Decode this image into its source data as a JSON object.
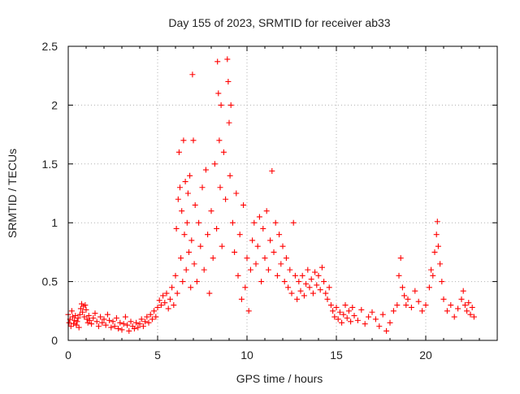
{
  "chart_data": {
    "type": "scatter",
    "title": "Day 155 of 2023, SRMTID for receiver ab33",
    "xlabel": "GPS time / hours",
    "ylabel": "SRMTID / TECUs",
    "xlim": [
      0,
      24
    ],
    "ylim": [
      0,
      2.5
    ],
    "xticks": [
      0,
      5,
      10,
      15,
      20
    ],
    "xtick_labels": [
      "0",
      "5",
      "10",
      "15",
      "20"
    ],
    "yticks": [
      0,
      0.5,
      1,
      1.5,
      2,
      2.5
    ],
    "ytick_labels": [
      "0",
      "0.5",
      "1",
      "1.5",
      "2",
      "2.5"
    ],
    "grid": true,
    "marker": "+",
    "series": [
      {
        "name": "SRMTID",
        "color": "#ff0000",
        "points": [
          [
            0.0,
            0.22
          ],
          [
            0.05,
            0.15
          ],
          [
            0.1,
            0.18
          ],
          [
            0.15,
            0.12
          ],
          [
            0.2,
            0.25
          ],
          [
            0.25,
            0.2
          ],
          [
            0.3,
            0.14
          ],
          [
            0.35,
            0.17
          ],
          [
            0.4,
            0.21
          ],
          [
            0.45,
            0.13
          ],
          [
            0.5,
            0.16
          ],
          [
            0.55,
            0.19
          ],
          [
            0.6,
            0.11
          ],
          [
            0.65,
            0.22
          ],
          [
            0.7,
            0.27
          ],
          [
            0.75,
            0.31
          ],
          [
            0.8,
            0.24
          ],
          [
            0.85,
            0.29
          ],
          [
            0.9,
            0.2
          ],
          [
            0.95,
            0.3
          ],
          [
            1.0,
            0.26
          ],
          [
            1.05,
            0.18
          ],
          [
            1.1,
            0.15
          ],
          [
            1.15,
            0.21
          ],
          [
            1.2,
            0.17
          ],
          [
            1.3,
            0.14
          ],
          [
            1.4,
            0.19
          ],
          [
            1.5,
            0.23
          ],
          [
            1.6,
            0.16
          ],
          [
            1.7,
            0.12
          ],
          [
            1.8,
            0.2
          ],
          [
            1.9,
            0.15
          ],
          [
            2.0,
            0.18
          ],
          [
            2.1,
            0.13
          ],
          [
            2.2,
            0.22
          ],
          [
            2.3,
            0.17
          ],
          [
            2.4,
            0.11
          ],
          [
            2.5,
            0.16
          ],
          [
            2.6,
            0.12
          ],
          [
            2.7,
            0.19
          ],
          [
            2.8,
            0.1
          ],
          [
            2.9,
            0.15
          ],
          [
            3.0,
            0.09
          ],
          [
            3.1,
            0.14
          ],
          [
            3.2,
            0.2
          ],
          [
            3.3,
            0.13
          ],
          [
            3.4,
            0.08
          ],
          [
            3.5,
            0.16
          ],
          [
            3.6,
            0.12
          ],
          [
            3.7,
            0.1
          ],
          [
            3.8,
            0.15
          ],
          [
            3.9,
            0.11
          ],
          [
            4.0,
            0.14
          ],
          [
            4.1,
            0.18
          ],
          [
            4.2,
            0.12
          ],
          [
            4.3,
            0.16
          ],
          [
            4.4,
            0.2
          ],
          [
            4.5,
            0.15
          ],
          [
            4.6,
            0.22
          ],
          [
            4.7,
            0.18
          ],
          [
            4.8,
            0.25
          ],
          [
            4.9,
            0.2
          ],
          [
            5.0,
            0.28
          ],
          [
            5.1,
            0.34
          ],
          [
            5.2,
            0.3
          ],
          [
            5.3,
            0.38
          ],
          [
            5.4,
            0.32
          ],
          [
            5.5,
            0.4
          ],
          [
            5.6,
            0.27
          ],
          [
            5.7,
            0.35
          ],
          [
            5.8,
            0.45
          ],
          [
            5.9,
            0.3
          ],
          [
            6.0,
            0.55
          ],
          [
            6.05,
            0.95
          ],
          [
            6.1,
            0.4
          ],
          [
            6.15,
            1.2
          ],
          [
            6.2,
            1.6
          ],
          [
            6.25,
            1.3
          ],
          [
            6.3,
            0.7
          ],
          [
            6.35,
            1.1
          ],
          [
            6.4,
            0.5
          ],
          [
            6.45,
            1.7
          ],
          [
            6.5,
            0.9
          ],
          [
            6.55,
            1.35
          ],
          [
            6.6,
            0.6
          ],
          [
            6.65,
            1.0
          ],
          [
            6.7,
            1.25
          ],
          [
            6.75,
            0.75
          ],
          [
            6.8,
            1.4
          ],
          [
            6.85,
            0.45
          ],
          [
            6.9,
            0.85
          ],
          [
            6.95,
            2.26
          ],
          [
            7.0,
            1.7
          ],
          [
            7.05,
            0.65
          ],
          [
            7.1,
            1.15
          ],
          [
            7.2,
            0.5
          ],
          [
            7.3,
            1.0
          ],
          [
            7.4,
            0.8
          ],
          [
            7.5,
            1.3
          ],
          [
            7.6,
            0.6
          ],
          [
            7.7,
            1.45
          ],
          [
            7.8,
            0.9
          ],
          [
            7.9,
            0.4
          ],
          [
            8.0,
            1.1
          ],
          [
            8.1,
            0.7
          ],
          [
            8.2,
            1.5
          ],
          [
            8.3,
            0.95
          ],
          [
            8.35,
            2.37
          ],
          [
            8.4,
            2.1
          ],
          [
            8.45,
            1.7
          ],
          [
            8.5,
            1.3
          ],
          [
            8.55,
            2.0
          ],
          [
            8.6,
            0.8
          ],
          [
            8.7,
            1.6
          ],
          [
            8.8,
            1.2
          ],
          [
            8.9,
            2.39
          ],
          [
            8.95,
            2.2
          ],
          [
            9.0,
            1.85
          ],
          [
            9.05,
            1.4
          ],
          [
            9.1,
            2.0
          ],
          [
            9.2,
            1.0
          ],
          [
            9.3,
            0.75
          ],
          [
            9.4,
            1.25
          ],
          [
            9.5,
            0.55
          ],
          [
            9.6,
            0.9
          ],
          [
            9.7,
            0.35
          ],
          [
            9.8,
            1.15
          ],
          [
            9.9,
            0.45
          ],
          [
            10.0,
            0.7
          ],
          [
            10.1,
            0.25
          ],
          [
            10.2,
            0.6
          ],
          [
            10.3,
            0.85
          ],
          [
            10.4,
            1.0
          ],
          [
            10.5,
            0.65
          ],
          [
            10.6,
            0.8
          ],
          [
            10.7,
            1.05
          ],
          [
            10.8,
            0.5
          ],
          [
            10.9,
            0.95
          ],
          [
            11.0,
            0.7
          ],
          [
            11.1,
            1.1
          ],
          [
            11.2,
            0.6
          ],
          [
            11.3,
            0.85
          ],
          [
            11.4,
            1.44
          ],
          [
            11.5,
            0.75
          ],
          [
            11.6,
            1.0
          ],
          [
            11.7,
            0.55
          ],
          [
            11.8,
            0.9
          ],
          [
            11.9,
            0.65
          ],
          [
            12.0,
            0.8
          ],
          [
            12.1,
            0.5
          ],
          [
            12.2,
            0.7
          ],
          [
            12.3,
            0.45
          ],
          [
            12.4,
            0.6
          ],
          [
            12.5,
            0.4
          ],
          [
            12.6,
            1.0
          ],
          [
            12.7,
            0.55
          ],
          [
            12.8,
            0.35
          ],
          [
            12.9,
            0.5
          ],
          [
            13.0,
            0.42
          ],
          [
            13.1,
            0.55
          ],
          [
            13.2,
            0.38
          ],
          [
            13.3,
            0.48
          ],
          [
            13.4,
            0.6
          ],
          [
            13.5,
            0.45
          ],
          [
            13.6,
            0.52
          ],
          [
            13.7,
            0.4
          ],
          [
            13.8,
            0.58
          ],
          [
            13.9,
            0.47
          ],
          [
            14.0,
            0.55
          ],
          [
            14.1,
            0.43
          ],
          [
            14.2,
            0.62
          ],
          [
            14.3,
            0.5
          ],
          [
            14.4,
            0.4
          ],
          [
            14.5,
            0.35
          ],
          [
            14.6,
            0.45
          ],
          [
            14.7,
            0.3
          ],
          [
            14.8,
            0.25
          ],
          [
            14.9,
            0.2
          ],
          [
            15.0,
            0.28
          ],
          [
            15.1,
            0.18
          ],
          [
            15.2,
            0.24
          ],
          [
            15.3,
            0.15
          ],
          [
            15.4,
            0.22
          ],
          [
            15.5,
            0.3
          ],
          [
            15.6,
            0.19
          ],
          [
            15.7,
            0.25
          ],
          [
            15.8,
            0.16
          ],
          [
            15.9,
            0.28
          ],
          [
            16.0,
            0.21
          ],
          [
            16.2,
            0.17
          ],
          [
            16.4,
            0.26
          ],
          [
            16.6,
            0.14
          ],
          [
            16.8,
            0.2
          ],
          [
            17.0,
            0.24
          ],
          [
            17.2,
            0.18
          ],
          [
            17.4,
            0.12
          ],
          [
            17.6,
            0.22
          ],
          [
            17.8,
            0.08
          ],
          [
            18.0,
            0.15
          ],
          [
            18.2,
            0.25
          ],
          [
            18.4,
            0.3
          ],
          [
            18.5,
            0.55
          ],
          [
            18.6,
            0.7
          ],
          [
            18.7,
            0.45
          ],
          [
            18.8,
            0.38
          ],
          [
            18.9,
            0.3
          ],
          [
            19.0,
            0.35
          ],
          [
            19.2,
            0.28
          ],
          [
            19.4,
            0.42
          ],
          [
            19.6,
            0.33
          ],
          [
            19.8,
            0.25
          ],
          [
            20.0,
            0.3
          ],
          [
            20.2,
            0.45
          ],
          [
            20.3,
            0.6
          ],
          [
            20.4,
            0.55
          ],
          [
            20.5,
            0.75
          ],
          [
            20.6,
            0.9
          ],
          [
            20.65,
            1.01
          ],
          [
            20.7,
            0.8
          ],
          [
            20.8,
            0.65
          ],
          [
            20.9,
            0.5
          ],
          [
            21.0,
            0.35
          ],
          [
            21.2,
            0.25
          ],
          [
            21.4,
            0.3
          ],
          [
            21.6,
            0.2
          ],
          [
            21.8,
            0.27
          ],
          [
            22.0,
            0.35
          ],
          [
            22.1,
            0.42
          ],
          [
            22.2,
            0.3
          ],
          [
            22.3,
            0.25
          ],
          [
            22.4,
            0.32
          ],
          [
            22.5,
            0.22
          ],
          [
            22.6,
            0.28
          ],
          [
            22.7,
            0.2
          ]
        ]
      }
    ]
  }
}
